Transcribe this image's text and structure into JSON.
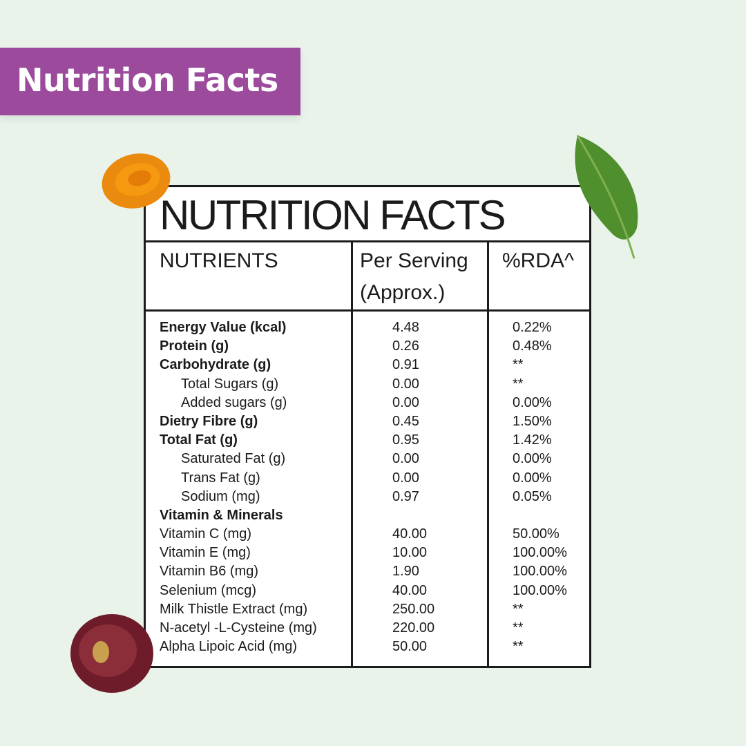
{
  "banner": {
    "title": "Nutrition Facts"
  },
  "panel": {
    "title": "NUTRITION FACTS",
    "headers": {
      "nutrients": "NUTRIENTS",
      "per_serving": "Per Serving\n(Approx.)",
      "rda": "%RDA^"
    }
  },
  "rows": [
    {
      "name": "Energy Value (kcal)",
      "value": "4.48",
      "rda": "0.22%"
    },
    {
      "name": "Protein (g)",
      "value": "0.26",
      "rda": "0.48%"
    },
    {
      "name": "Carbohydrate (g)",
      "value": "0.91",
      "rda": "**"
    },
    {
      "name": "Total Sugars (g)",
      "value": "0.00",
      "rda": "**"
    },
    {
      "name": "Added sugars (g)",
      "value": "0.00",
      "rda": "0.00%"
    },
    {
      "name": "Dietry Fibre (g)",
      "value": "0.45",
      "rda": "1.50%"
    },
    {
      "name": "Total Fat (g)",
      "value": "0.95",
      "rda": "1.42%"
    },
    {
      "name": "Saturated Fat (g)",
      "value": "0.00",
      "rda": "0.00%"
    },
    {
      "name": "Trans Fat (g)",
      "value": "0.00",
      "rda": "0.00%"
    },
    {
      "name": "Sodium (mg)",
      "value": "0.97",
      "rda": "0.05%"
    },
    {
      "name": "Vitamin & Minerals",
      "value": "",
      "rda": ""
    },
    {
      "name": "Vitamin C (mg)",
      "value": "40.00",
      "rda": "50.00%"
    },
    {
      "name": "Vitamin E (mg)",
      "value": "10.00",
      "rda": "100.00%"
    },
    {
      "name": "Vitamin B6 (mg)",
      "value": "1.90",
      "rda": "100.00%"
    },
    {
      "name": "Selenium (mcg)",
      "value": "40.00",
      "rda": "100.00%"
    },
    {
      "name": "Milk Thistle Extract (mg)",
      "value": "250.00",
      "rda": "**"
    },
    {
      "name": "N-acetyl -L-Cysteine (mg)",
      "value": "220.00",
      "rda": "**"
    },
    {
      "name": "Alpha Lipoic Acid (mg)",
      "value": "50.00",
      "rda": "**"
    }
  ],
  "decorations": [
    "turmeric-slice",
    "basil-leaf",
    "grape-half"
  ],
  "colors": {
    "banner": "#9b4a9c",
    "background": "#e9f3ea",
    "ink": "#1b1b1b"
  }
}
